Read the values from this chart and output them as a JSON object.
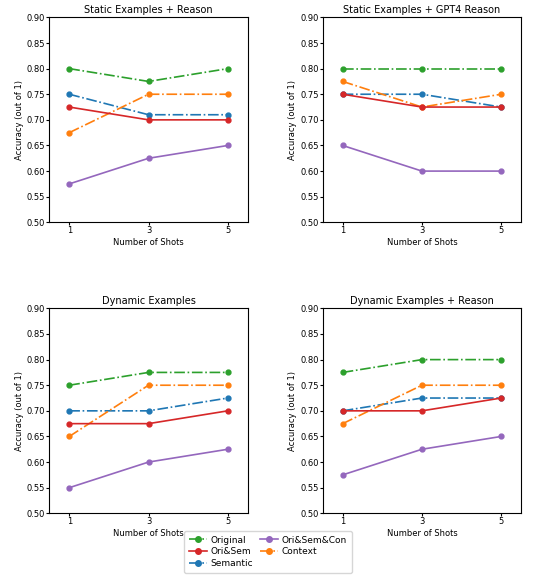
{
  "shots": [
    1,
    3,
    5
  ],
  "titles": [
    "Static Examples + Reason",
    "Static Examples + GPT4 Reason",
    "Dynamic Examples",
    "Dynamic Examples + Reason"
  ],
  "series_order": [
    "Original",
    "Semantic",
    "Context",
    "Ori&Sem",
    "Ori&Sem&Con"
  ],
  "series": {
    "Original": {
      "color": "#2ca02c",
      "linestyle": "-.",
      "marker": "o"
    },
    "Semantic": {
      "color": "#1f77b4",
      "linestyle": "-.",
      "marker": "o"
    },
    "Context": {
      "color": "#ff7f0e",
      "linestyle": "-.",
      "marker": "o"
    },
    "Ori&Sem": {
      "color": "#d62728",
      "linestyle": "-",
      "marker": "o"
    },
    "Ori&Sem&Con": {
      "color": "#9467bd",
      "linestyle": "-",
      "marker": "o"
    }
  },
  "data": {
    "Static Examples + Reason": {
      "Original": [
        0.8,
        0.775,
        0.8
      ],
      "Semantic": [
        0.75,
        0.71,
        0.71
      ],
      "Context": [
        0.675,
        0.75,
        0.75
      ],
      "Ori&Sem": [
        0.725,
        0.7,
        0.7
      ],
      "Ori&Sem&Con": [
        0.575,
        0.625,
        0.65
      ]
    },
    "Static Examples + GPT4 Reason": {
      "Original": [
        0.8,
        0.8,
        0.8
      ],
      "Semantic": [
        0.75,
        0.75,
        0.725
      ],
      "Context": [
        0.775,
        0.725,
        0.75
      ],
      "Ori&Sem": [
        0.75,
        0.725,
        0.725
      ],
      "Ori&Sem&Con": [
        0.65,
        0.6,
        0.6
      ]
    },
    "Dynamic Examples": {
      "Original": [
        0.75,
        0.775,
        0.775
      ],
      "Semantic": [
        0.7,
        0.7,
        0.725
      ],
      "Context": [
        0.65,
        0.75,
        0.75
      ],
      "Ori&Sem": [
        0.675,
        0.675,
        0.7
      ],
      "Ori&Sem&Con": [
        0.55,
        0.6,
        0.625
      ]
    },
    "Dynamic Examples + Reason": {
      "Original": [
        0.775,
        0.8,
        0.8
      ],
      "Semantic": [
        0.7,
        0.725,
        0.725
      ],
      "Context": [
        0.675,
        0.75,
        0.75
      ],
      "Ori&Sem": [
        0.7,
        0.7,
        0.725
      ],
      "Ori&Sem&Con": [
        0.575,
        0.625,
        0.65
      ]
    }
  },
  "ylim": [
    0.5,
    0.9
  ],
  "yticks": [
    0.5,
    0.55,
    0.6,
    0.65,
    0.7,
    0.75,
    0.8,
    0.85,
    0.9
  ],
  "xlabel": "Number of Shots",
  "ylabel": "Accuracy (out of 1)",
  "legend_col1": [
    "Original",
    "Semantic",
    "Context"
  ],
  "legend_col2": [
    "Ori&Sem",
    "Ori&Sem&Con"
  ],
  "background_color": "#ffffff",
  "title_fontsize": 7,
  "tick_fontsize": 6,
  "label_fontsize": 6,
  "legend_fontsize": 6.5,
  "markersize": 3.5,
  "linewidth": 1.2
}
